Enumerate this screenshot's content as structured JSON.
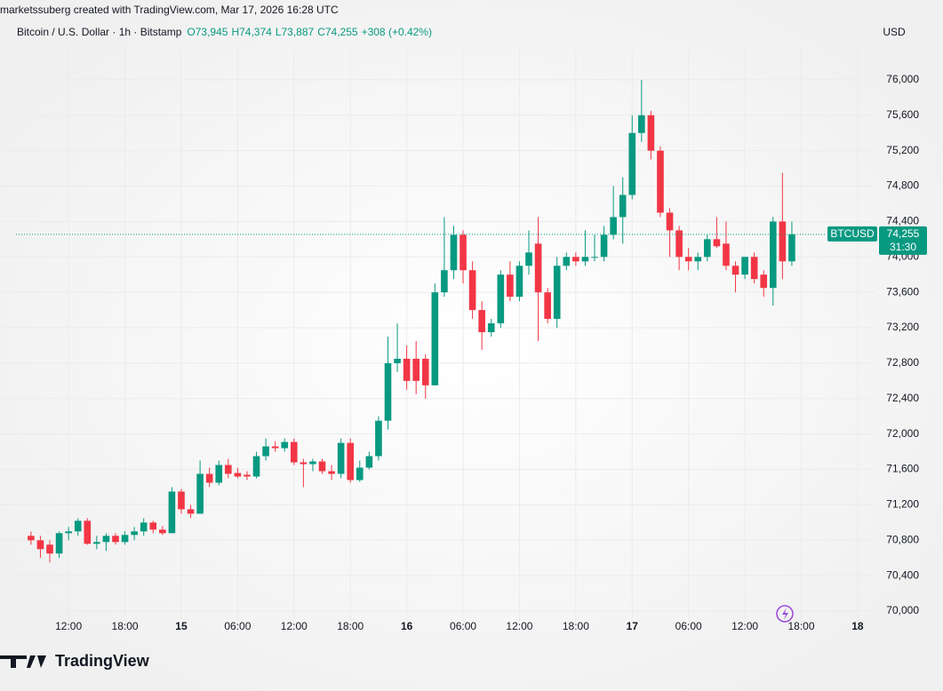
{
  "chart_data": {
    "type": "candlestick",
    "credit": "marketssuberg created with TradingView.com, Mar 17, 2026 16:28 UTC",
    "title": "Bitcoin / U.S. Dollar · 1h · Bitstamp",
    "legend": {
      "open": "O73,945",
      "high": "H74,374",
      "low": "L73,887",
      "close": "C74,255",
      "change": "+308 (+0.42%)"
    },
    "currency": "USD",
    "brand": "TradingView",
    "symbol": "BTCUSD",
    "countdown": "31:30",
    "last_price": {
      "value": 74255,
      "label": "74,255"
    },
    "up_color": "#089981",
    "down_color": "#f23645",
    "grid": true,
    "open": [
      70850,
      70800,
      70750,
      70650,
      70880,
      70900,
      71020,
      70760,
      70780,
      70850,
      70780,
      70860,
      70900,
      71000,
      70920,
      70880,
      71350,
      71150,
      71100,
      71550,
      71450,
      71650,
      71560,
      71540,
      71520,
      71750,
      71860,
      71840,
      71910,
      71680,
      71660,
      71690,
      71580,
      71550,
      71900,
      71480,
      71620,
      71750,
      72150,
      72800,
      72850,
      72850,
      72850,
      72550,
      73600,
      73850,
      74250,
      73850,
      73400,
      73150,
      73250,
      73800,
      73550,
      73900,
      74150,
      73600,
      73300,
      73900,
      74000,
      73950,
      74000,
      74000,
      74250,
      74450,
      74700,
      75400,
      75600,
      75200,
      74500,
      74300,
      74000,
      73950,
      74000,
      74200,
      74150,
      73900,
      73800,
      74000,
      73800,
      73650,
      74400,
      73950
    ],
    "high": [
      70900,
      70850,
      70800,
      70900,
      70950,
      71050,
      71050,
      70850,
      70880,
      70880,
      70900,
      70950,
      71050,
      71020,
      70960,
      71400,
      71380,
      71200,
      71700,
      71620,
      71700,
      71720,
      71620,
      71580,
      71800,
      71950,
      71920,
      71950,
      71950,
      71720,
      71720,
      71720,
      71650,
      71950,
      71950,
      71700,
      71800,
      72200,
      73100,
      73250,
      73000,
      73050,
      72900,
      73700,
      74450,
      74350,
      74300,
      73950,
      73500,
      73300,
      73850,
      73950,
      73950,
      74300,
      74450,
      73650,
      74000,
      74050,
      74050,
      74300,
      74250,
      74350,
      74800,
      74900,
      75600,
      76000,
      75650,
      75250,
      74550,
      74350,
      74100,
      74050,
      74250,
      74450,
      74400,
      73950,
      74000,
      74050,
      73850,
      74450,
      74950,
      74400
    ],
    "low": [
      70750,
      70600,
      70550,
      70600,
      70800,
      70850,
      70750,
      70700,
      70680,
      70750,
      70750,
      70800,
      70850,
      70880,
      70860,
      70880,
      71100,
      71050,
      71100,
      71400,
      71420,
      71500,
      71500,
      71480,
      71500,
      71700,
      71800,
      71800,
      71650,
      71400,
      71580,
      71550,
      71480,
      71500,
      71450,
      71460,
      71600,
      71700,
      72050,
      72700,
      72500,
      72450,
      72400,
      72550,
      73550,
      73750,
      73700,
      73300,
      72950,
      73100,
      73200,
      73500,
      73500,
      73800,
      73050,
      73250,
      73200,
      73850,
      73900,
      73900,
      73950,
      73950,
      74200,
      74150,
      74650,
      75300,
      75100,
      74450,
      74000,
      73850,
      73850,
      73850,
      73950,
      74100,
      73850,
      73600,
      73750,
      73700,
      73550,
      73450,
      73750,
      73900
    ],
    "close": [
      70800,
      70700,
      70650,
      70880,
      70900,
      71020,
      70760,
      70780,
      70850,
      70780,
      70860,
      70900,
      71000,
      70920,
      70880,
      71350,
      71150,
      71100,
      71550,
      71450,
      71650,
      71550,
      71520,
      71520,
      71750,
      71860,
      71840,
      71910,
      71680,
      71660,
      71690,
      71580,
      71550,
      71900,
      71480,
      71620,
      71750,
      72150,
      72800,
      72850,
      72600,
      72600,
      72550,
      73600,
      73850,
      74250,
      73850,
      73400,
      73150,
      73250,
      73800,
      73550,
      73900,
      74050,
      73600,
      73300,
      73900,
      74000,
      73950,
      74000,
      74000,
      74250,
      74450,
      74700,
      75400,
      75600,
      75200,
      74500,
      74300,
      74000,
      73950,
      74000,
      74200,
      74120,
      73900,
      73800,
      74000,
      73750,
      73650,
      74400,
      73950,
      74255
    ],
    "xlim": [
      -3.3,
      89.9
    ],
    "xticks": [
      {
        "value": 4,
        "label": "12:00"
      },
      {
        "value": 10,
        "label": "18:00"
      },
      {
        "value": 16,
        "label": "15"
      },
      {
        "value": 22,
        "label": "06:00"
      },
      {
        "value": 28,
        "label": "12:00"
      },
      {
        "value": 34,
        "label": "18:00"
      },
      {
        "value": 40,
        "label": "16"
      },
      {
        "value": 46,
        "label": "06:00"
      },
      {
        "value": 52,
        "label": "12:00"
      },
      {
        "value": 58,
        "label": "18:00"
      },
      {
        "value": 64,
        "label": "17"
      },
      {
        "value": 70,
        "label": "06:00"
      },
      {
        "value": 76,
        "label": "12:00"
      },
      {
        "value": 82,
        "label": "18:00"
      },
      {
        "value": 88,
        "label": "18"
      }
    ],
    "ylim": [
      69880,
      76350
    ],
    "yticks": [
      {
        "value": 70000,
        "label": "70,000"
      },
      {
        "value": 70400,
        "label": "70,400"
      },
      {
        "value": 70800,
        "label": "70,800"
      },
      {
        "value": 71200,
        "label": "71,200"
      },
      {
        "value": 71600,
        "label": "71,600"
      },
      {
        "value": 72000,
        "label": "72,000"
      },
      {
        "value": 72400,
        "label": "72,400"
      },
      {
        "value": 72800,
        "label": "72,800"
      },
      {
        "value": 73200,
        "label": "73,200"
      },
      {
        "value": 73600,
        "label": "73,600"
      },
      {
        "value": 74000,
        "label": "74,000"
      },
      {
        "value": 74400,
        "label": "74,400"
      },
      {
        "value": 74800,
        "label": "74,800"
      },
      {
        "value": 75200,
        "label": "75,200"
      },
      {
        "value": 75600,
        "label": "75,600"
      },
      {
        "value": 76000,
        "label": "76,000"
      }
    ]
  }
}
